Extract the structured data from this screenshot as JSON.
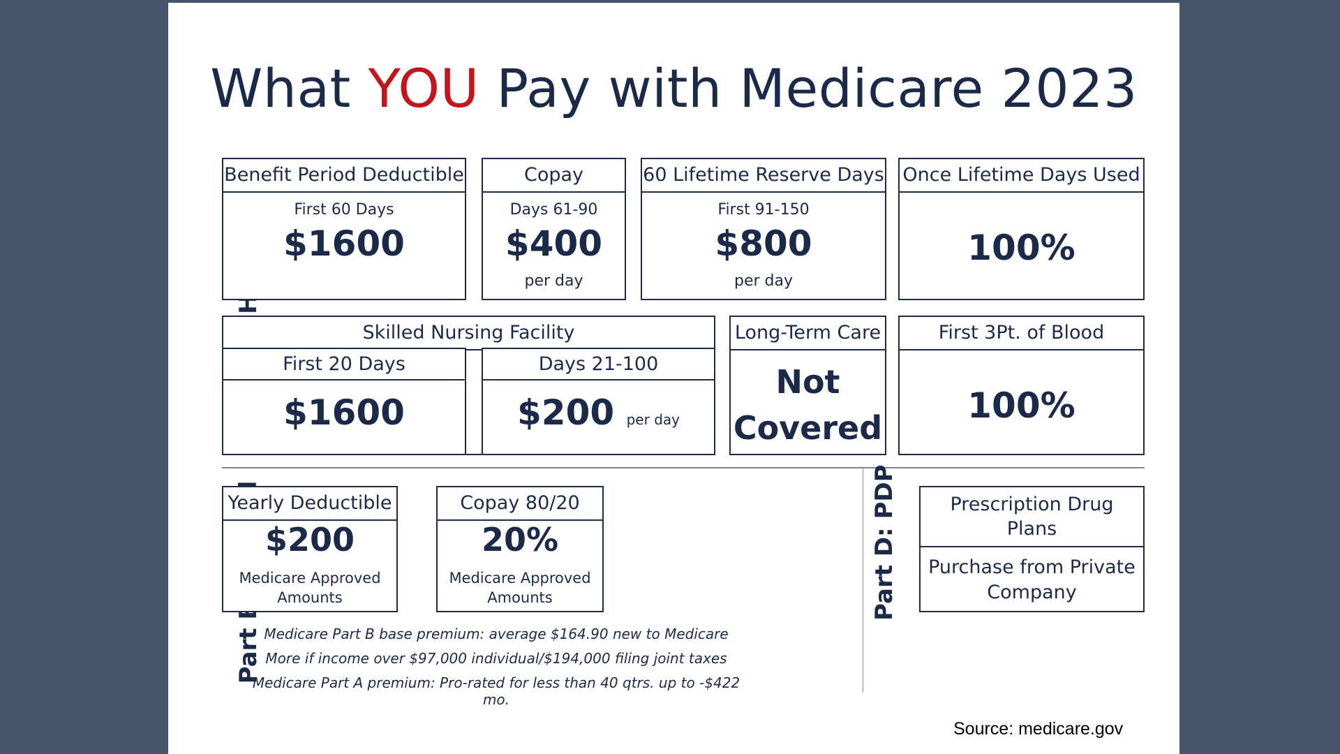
{
  "title": {
    "part1": "What ",
    "highlight": "YOU",
    "part2": " Pay with Medicare 2023"
  },
  "colors": {
    "background": "#46546b",
    "navy": "#1b2a48",
    "highlight": "#c0161c"
  },
  "part_a": {
    "label": "Part A: Hospital",
    "deductible": {
      "header": "Benefit Period Deductible",
      "sub": "First 60 Days",
      "amount": "$1600"
    },
    "copay": {
      "header": "Copay",
      "sub": "Days 61-90",
      "amount": "$400",
      "unit": "per day"
    },
    "reserve": {
      "header": "60 Lifetime Reserve Days",
      "sub": "First 91-150",
      "amount": "$800",
      "unit": "per day"
    },
    "once_used": {
      "header": "Once Lifetime Days Used",
      "amount": "100%"
    },
    "snf": {
      "header": "Skilled Nursing Facility",
      "first": {
        "header": "First 20 Days",
        "amount": "$1600"
      },
      "second": {
        "header": "Days 21-100",
        "amount": "$200",
        "unit": "per day"
      }
    },
    "ltc": {
      "header": "Long-Term Care",
      "line1": "Not",
      "line2": "Covered"
    },
    "blood": {
      "header": "First  3Pt. of Blood",
      "amount": "100%"
    }
  },
  "part_b": {
    "label": "Part B: Medical",
    "deductible": {
      "header": "Yearly Deductible",
      "amount": "$200",
      "note1": "Medicare Approved",
      "note2": "Amounts"
    },
    "copay": {
      "header": "Copay 80/20",
      "amount": "20%",
      "note1": "Medicare Approved",
      "note2": "Amounts"
    },
    "notes": [
      "Medicare Part B base premium: average $164.90 new to Medicare",
      "More if income over $97,000 individual/$194,000 filing joint taxes",
      "Medicare Part A premium: Pro-rated for less than 40 qtrs. up to -$422 mo."
    ]
  },
  "part_d": {
    "label": "Part D: PDP",
    "line1a": "Prescription Drug",
    "line1b": "Plans",
    "line2a": "Purchase from Private",
    "line2b": "Company"
  },
  "source": {
    "label": "Source: ",
    "site": "medicare.gov"
  }
}
